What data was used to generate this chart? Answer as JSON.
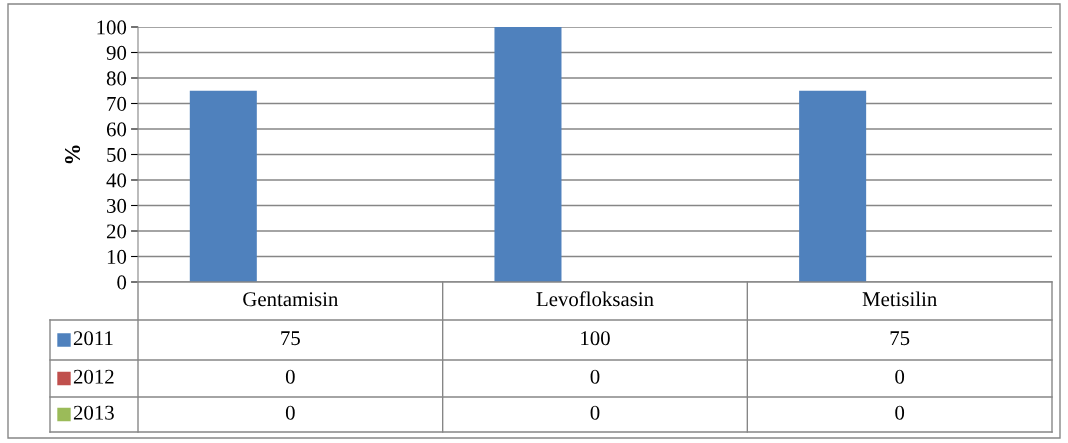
{
  "chart_data": {
    "type": "bar",
    "ylabel": "%",
    "categories": [
      "Gentamisin",
      "Levofloksasin",
      "Metisilin"
    ],
    "series": [
      {
        "name": "2011",
        "color": "#4f81bd",
        "values": [
          75,
          100,
          75
        ]
      },
      {
        "name": "2012",
        "color": "#c0504d",
        "values": [
          0,
          0,
          0
        ]
      },
      {
        "name": "2013",
        "color": "#9bbb59",
        "values": [
          0,
          0,
          0
        ]
      }
    ],
    "ylim": [
      0,
      100
    ],
    "yticks": [
      0,
      10,
      20,
      30,
      40,
      50,
      60,
      70,
      80,
      90,
      100
    ],
    "grid": "y",
    "legend": "bottom",
    "data_labels": true
  }
}
